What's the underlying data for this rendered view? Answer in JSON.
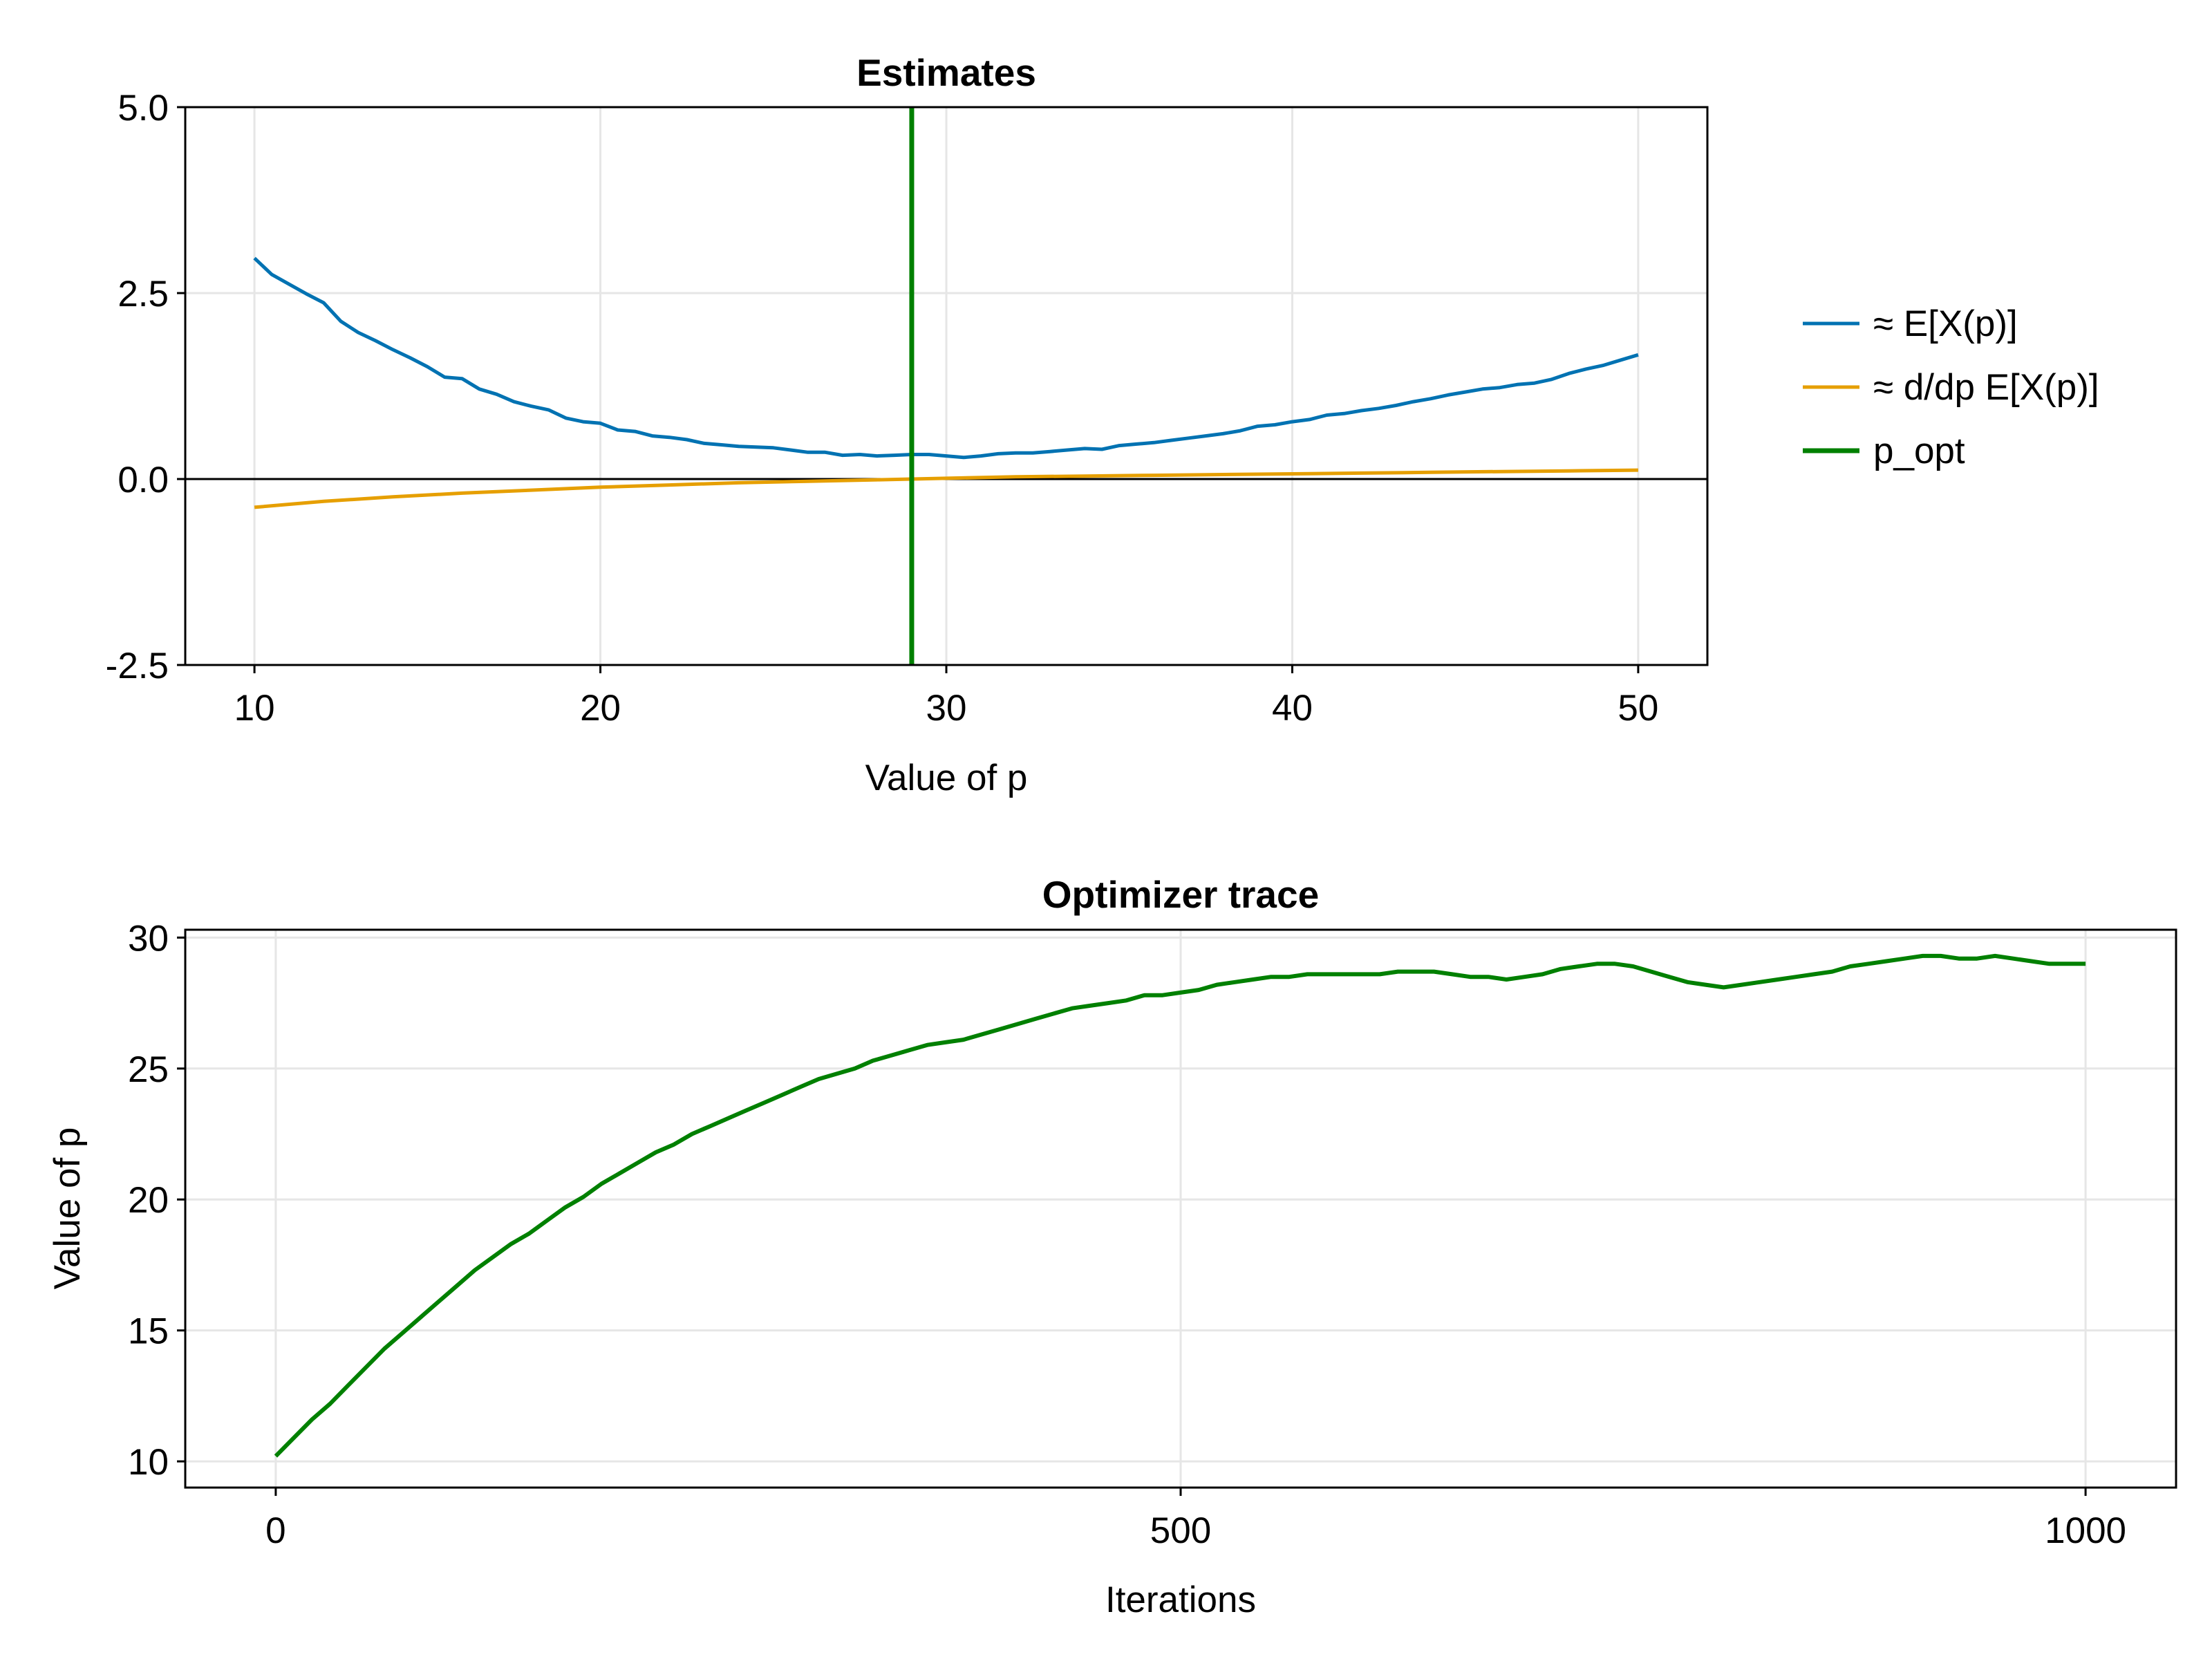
{
  "chart_data": [
    {
      "type": "line",
      "title": "Estimates",
      "xlabel": "Value of p",
      "ylabel": "",
      "xlim": [
        8,
        52
      ],
      "ylim": [
        -2.5,
        5.0
      ],
      "xticks": [
        10,
        20,
        30,
        40,
        50
      ],
      "xtick_labels": [
        "10",
        "20",
        "30",
        "40",
        "50"
      ],
      "yticks": [
        -2.5,
        0.0,
        2.5,
        5.0
      ],
      "ytick_labels": [
        "-2.5",
        "0.0",
        "2.5",
        "5.0"
      ],
      "grid": true,
      "legend": {
        "placement": "right"
      },
      "hline": {
        "y": 0,
        "color": "#000000"
      },
      "series": [
        {
          "name": "≈ E[X(p)]",
          "color": "#0072b2",
          "x": [
            10,
            10.5,
            11,
            11.5,
            12,
            12.5,
            13,
            13.5,
            14,
            14.5,
            15,
            15.5,
            16,
            16.5,
            17,
            17.5,
            18,
            18.5,
            19,
            19.5,
            20,
            20.5,
            21,
            21.5,
            22,
            22.5,
            23,
            23.5,
            24,
            24.5,
            25,
            25.5,
            26,
            26.5,
            27,
            27.5,
            28,
            28.5,
            29,
            29.5,
            30,
            30.5,
            31,
            31.5,
            32,
            32.5,
            33,
            33.5,
            34,
            34.5,
            35,
            35.5,
            36,
            36.5,
            37,
            37.5,
            38,
            38.5,
            39,
            39.5,
            40,
            40.5,
            41,
            41.5,
            42,
            42.5,
            43,
            43.5,
            44,
            44.5,
            45,
            45.5,
            46,
            46.5,
            47,
            47.5,
            48,
            48.5,
            49,
            49.5,
            50
          ],
          "y": [
            2.97,
            2.75,
            2.62,
            2.49,
            2.37,
            2.12,
            1.97,
            1.86,
            1.74,
            1.63,
            1.51,
            1.37,
            1.35,
            1.21,
            1.14,
            1.04,
            0.98,
            0.93,
            0.82,
            0.77,
            0.75,
            0.66,
            0.64,
            0.58,
            0.56,
            0.53,
            0.48,
            0.46,
            0.44,
            0.43,
            0.42,
            0.39,
            0.36,
            0.36,
            0.32,
            0.33,
            0.31,
            0.32,
            0.33,
            0.33,
            0.31,
            0.29,
            0.31,
            0.34,
            0.35,
            0.35,
            0.37,
            0.39,
            0.41,
            0.4,
            0.45,
            0.47,
            0.49,
            0.52,
            0.55,
            0.58,
            0.61,
            0.65,
            0.71,
            0.73,
            0.77,
            0.8,
            0.86,
            0.88,
            0.92,
            0.95,
            0.99,
            1.04,
            1.08,
            1.13,
            1.17,
            1.21,
            1.23,
            1.27,
            1.29,
            1.34,
            1.42,
            1.48,
            1.53,
            1.6,
            1.67
          ]
        },
        {
          "name": "≈ d/dp E[X(p)]",
          "color": "#e69f00",
          "x": [
            10,
            12,
            14,
            16,
            18,
            20,
            22,
            24,
            26,
            28,
            29,
            30,
            32,
            34,
            36,
            38,
            40,
            42,
            44,
            46,
            48,
            50
          ],
          "y": [
            -0.38,
            -0.3,
            -0.24,
            -0.19,
            -0.15,
            -0.11,
            -0.08,
            -0.05,
            -0.03,
            -0.01,
            0.0,
            0.01,
            0.03,
            0.04,
            0.05,
            0.06,
            0.07,
            0.08,
            0.09,
            0.1,
            0.11,
            0.12
          ]
        }
      ],
      "vline": {
        "name": "p_opt",
        "x": 29.0,
        "color": "#008000"
      }
    },
    {
      "type": "line",
      "title": "Optimizer trace",
      "xlabel": "Iterations",
      "ylabel": "Value of p",
      "xlim": [
        -50,
        1050
      ],
      "ylim": [
        9,
        30.3
      ],
      "xticks": [
        0,
        500,
        1000
      ],
      "xtick_labels": [
        "0",
        "500",
        "1000"
      ],
      "yticks": [
        10,
        15,
        20,
        25,
        30
      ],
      "ytick_labels": [
        "10",
        "15",
        "20",
        "25",
        "30"
      ],
      "grid": true,
      "series": [
        {
          "name": "",
          "color": "#008000",
          "x": [
            0,
            10,
            20,
            30,
            40,
            50,
            60,
            70,
            80,
            90,
            100,
            110,
            120,
            130,
            140,
            150,
            160,
            170,
            180,
            190,
            200,
            210,
            220,
            230,
            240,
            250,
            260,
            270,
            280,
            290,
            300,
            310,
            320,
            330,
            340,
            350,
            360,
            370,
            380,
            390,
            400,
            410,
            420,
            430,
            440,
            450,
            460,
            470,
            480,
            490,
            500,
            510,
            520,
            530,
            540,
            550,
            560,
            570,
            580,
            590,
            600,
            610,
            620,
            630,
            640,
            650,
            660,
            670,
            680,
            690,
            700,
            710,
            720,
            730,
            740,
            750,
            760,
            770,
            780,
            790,
            800,
            810,
            820,
            830,
            840,
            850,
            860,
            870,
            880,
            890,
            900,
            910,
            920,
            930,
            940,
            950,
            960,
            970,
            980,
            990,
            1000
          ],
          "y": [
            10.2,
            10.9,
            11.6,
            12.2,
            12.9,
            13.6,
            14.3,
            14.9,
            15.5,
            16.1,
            16.7,
            17.3,
            17.8,
            18.3,
            18.7,
            19.2,
            19.7,
            20.1,
            20.6,
            21.0,
            21.4,
            21.8,
            22.1,
            22.5,
            22.8,
            23.1,
            23.4,
            23.7,
            24.0,
            24.3,
            24.6,
            24.8,
            25.0,
            25.3,
            25.5,
            25.7,
            25.9,
            26.0,
            26.1,
            26.3,
            26.5,
            26.7,
            26.9,
            27.1,
            27.3,
            27.4,
            27.5,
            27.6,
            27.8,
            27.8,
            27.9,
            28.0,
            28.2,
            28.3,
            28.4,
            28.5,
            28.5,
            28.6,
            28.6,
            28.6,
            28.6,
            28.6,
            28.7,
            28.7,
            28.7,
            28.6,
            28.5,
            28.5,
            28.4,
            28.5,
            28.6,
            28.8,
            28.9,
            29.0,
            29.0,
            28.9,
            28.7,
            28.5,
            28.3,
            28.2,
            28.1,
            28.2,
            28.3,
            28.4,
            28.5,
            28.6,
            28.7,
            28.9,
            29.0,
            29.1,
            29.2,
            29.3,
            29.3,
            29.2,
            29.2,
            29.3,
            29.2,
            29.1,
            29.0,
            29.0,
            29.0
          ]
        }
      ]
    }
  ]
}
